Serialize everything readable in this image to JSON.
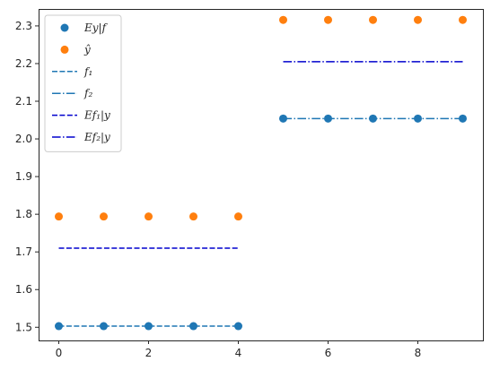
{
  "chart_data": {
    "type": "scatter",
    "title": "",
    "xlabel": "",
    "ylabel": "",
    "xlim": [
      -0.45,
      9.45
    ],
    "ylim": [
      1.465,
      2.345
    ],
    "xticks": [
      0,
      2,
      4,
      6,
      8
    ],
    "xtick_labels": [
      "0",
      "2",
      "4",
      "6",
      "8"
    ],
    "yticks": [
      1.5,
      1.6,
      1.7,
      1.8,
      1.9,
      2.0,
      2.1,
      2.2,
      2.3
    ],
    "ytick_labels": [
      "1.5",
      "1.6",
      "1.7",
      "1.8",
      "1.9",
      "2.0",
      "2.1",
      "2.2",
      "2.3"
    ],
    "grid": false,
    "legend_position": "upper-left",
    "colors": {
      "blue": "#1f77b4",
      "orange": "#ff7f0e",
      "navy": "#0000cd",
      "axis": "#262626"
    },
    "series": [
      {
        "name": "Ey|f",
        "kind": "scatter",
        "color": "#1f77b4",
        "x": [
          0,
          1,
          2,
          3,
          4,
          5,
          6,
          7,
          8,
          9
        ],
        "y": [
          1.503,
          1.503,
          1.503,
          1.503,
          1.503,
          2.054,
          2.054,
          2.054,
          2.054,
          2.054
        ]
      },
      {
        "name": "ŷ",
        "kind": "scatter",
        "color": "#ff7f0e",
        "x": [
          0,
          1,
          2,
          3,
          4,
          5,
          6,
          7,
          8,
          9
        ],
        "y": [
          1.794,
          1.794,
          1.794,
          1.794,
          1.794,
          2.316,
          2.316,
          2.316,
          2.316,
          2.316
        ]
      },
      {
        "name": "f₁",
        "kind": "line",
        "style": "dashed",
        "color": "#1f77b4",
        "x": [
          0,
          4
        ],
        "y": [
          1.503,
          1.503
        ]
      },
      {
        "name": "f₂",
        "kind": "line",
        "style": "dashdot",
        "color": "#1f77b4",
        "x": [
          5,
          9
        ],
        "y": [
          2.054,
          2.054
        ]
      },
      {
        "name": "Ef₁|y",
        "kind": "line",
        "style": "dashed",
        "color": "#0000cd",
        "x": [
          0,
          4
        ],
        "y": [
          1.71,
          1.71
        ]
      },
      {
        "name": "Ef₂|y",
        "kind": "line",
        "style": "dashdot",
        "color": "#0000cd",
        "x": [
          5,
          9
        ],
        "y": [
          2.205,
          2.205
        ]
      }
    ]
  }
}
